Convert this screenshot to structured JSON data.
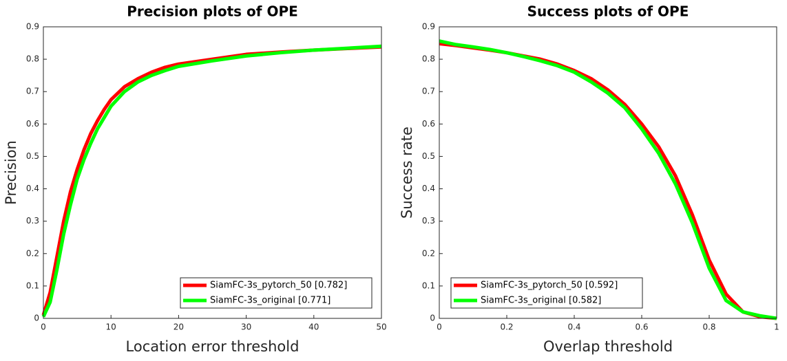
{
  "chart_data": [
    {
      "type": "line",
      "title": "Precision plots of OPE",
      "x_label": "Location error threshold",
      "y_label": "Precision",
      "x": [
        0,
        1,
        2,
        3,
        4,
        5,
        6,
        7,
        8,
        9,
        10,
        12,
        14,
        16,
        18,
        20,
        25,
        30,
        35,
        40,
        45,
        50
      ],
      "series": [
        {
          "name": "SiamFC-3s_pytorch_50 [0.782]",
          "color": "#ff0000",
          "values": [
            0.01,
            0.08,
            0.19,
            0.3,
            0.39,
            0.46,
            0.52,
            0.57,
            0.61,
            0.645,
            0.675,
            0.715,
            0.74,
            0.76,
            0.775,
            0.785,
            0.8,
            0.815,
            0.822,
            0.828,
            0.833,
            0.838
          ]
        },
        {
          "name": "SiamFC-3s_original [0.771]",
          "color": "#00ff00",
          "values": [
            0.005,
            0.05,
            0.15,
            0.26,
            0.35,
            0.43,
            0.49,
            0.54,
            0.585,
            0.62,
            0.655,
            0.7,
            0.73,
            0.75,
            0.765,
            0.778,
            0.795,
            0.81,
            0.82,
            0.828,
            0.834,
            0.84
          ]
        }
      ],
      "xlim": [
        0,
        50
      ],
      "xticks": [
        0,
        10,
        20,
        30,
        40,
        50
      ],
      "ylim": [
        0,
        0.9
      ],
      "yticks": [
        0,
        0.1,
        0.2,
        0.3,
        0.4,
        0.5,
        0.6,
        0.7,
        0.8,
        0.9
      ],
      "legend": "lower right"
    },
    {
      "type": "line",
      "title": "Success plots of OPE",
      "x_label": "Overlap threshold",
      "y_label": "Success rate",
      "x": [
        0,
        0.05,
        0.1,
        0.15,
        0.2,
        0.25,
        0.3,
        0.35,
        0.4,
        0.45,
        0.5,
        0.55,
        0.6,
        0.65,
        0.7,
        0.75,
        0.8,
        0.85,
        0.9,
        0.95,
        1
      ],
      "series": [
        {
          "name": "SiamFC-3s_pytorch_50 [0.592]",
          "color": "#ff0000",
          "values": [
            0.848,
            0.842,
            0.835,
            0.828,
            0.82,
            0.81,
            0.8,
            0.785,
            0.765,
            0.74,
            0.705,
            0.66,
            0.6,
            0.53,
            0.44,
            0.32,
            0.18,
            0.075,
            0.02,
            0.005,
            0.0
          ]
        },
        {
          "name": "SiamFC-3s_original [0.582]",
          "color": "#00ff00",
          "values": [
            0.856,
            0.845,
            0.838,
            0.83,
            0.82,
            0.808,
            0.795,
            0.78,
            0.76,
            0.73,
            0.695,
            0.65,
            0.585,
            0.51,
            0.415,
            0.295,
            0.155,
            0.055,
            0.02,
            0.008,
            0.0
          ]
        }
      ],
      "xlim": [
        0,
        1
      ],
      "xticks": [
        0,
        0.2,
        0.4,
        0.6,
        0.8,
        1
      ],
      "ylim": [
        0,
        0.9
      ],
      "yticks": [
        0,
        0.1,
        0.2,
        0.3,
        0.4,
        0.5,
        0.6,
        0.7,
        0.8,
        0.9
      ],
      "legend": "lower left"
    }
  ]
}
